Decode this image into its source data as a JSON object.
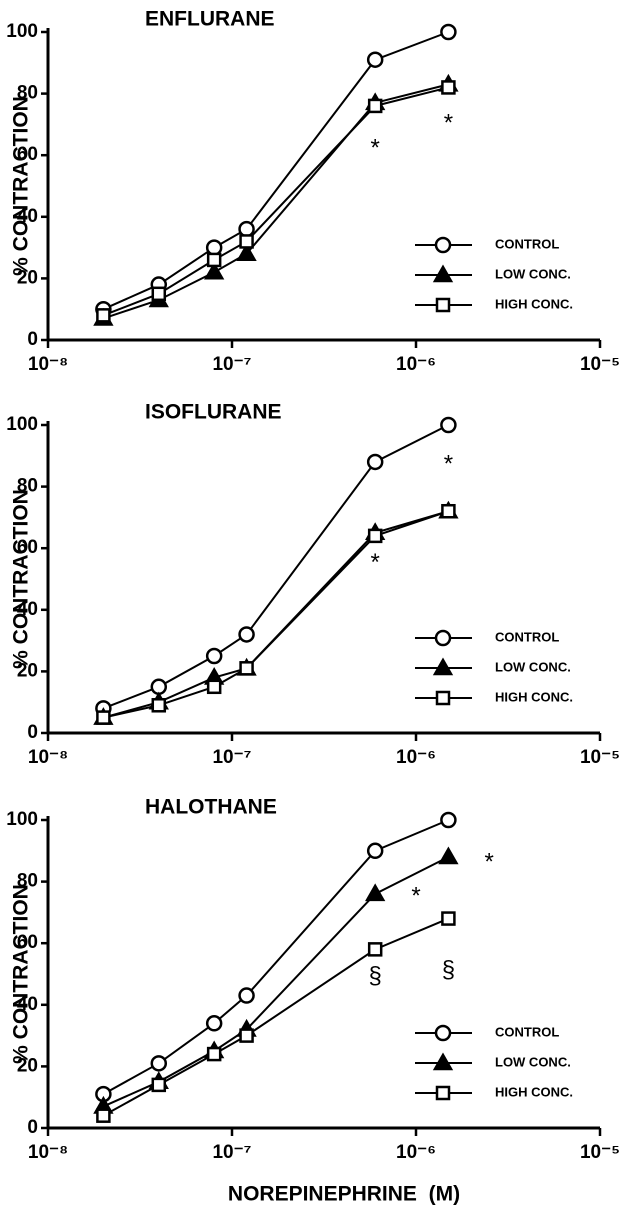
{
  "chart_data": [
    {
      "type": "line",
      "title": "ENFLURANE",
      "y_label": "% CONTRACTION",
      "x": [
        2e-08,
        4e-08,
        8e-08,
        1.2e-07,
        6e-07,
        1.5e-06
      ],
      "xlog": true,
      "xlim": [
        1e-08,
        1e-05
      ],
      "xticks": [
        {
          "value": 1e-08,
          "label": "10⁻⁸"
        },
        {
          "value": 1e-07,
          "label": "10⁻⁷"
        },
        {
          "value": 1e-06,
          "label": "10⁻⁶"
        },
        {
          "value": 1e-05,
          "label": "10⁻⁵"
        }
      ],
      "ylim": [
        0,
        100
      ],
      "yticks": [
        0,
        20,
        40,
        60,
        80,
        100
      ],
      "legend": "lower right",
      "series": [
        {
          "name": "CONTROL",
          "color": "#000000",
          "marker": "circle",
          "values": [
            10,
            18,
            30,
            36,
            91,
            100
          ]
        },
        {
          "name": "LOW CONC.",
          "color": "#000000",
          "marker": "triangle",
          "values": [
            7,
            13,
            22,
            28,
            77,
            83
          ]
        },
        {
          "name": "HIGH CONC.",
          "color": "#000000",
          "marker": "square",
          "values": [
            8,
            15,
            26,
            32,
            76,
            82
          ]
        }
      ],
      "annotations": [
        {
          "text": "*",
          "x": 6e-07,
          "y": 62
        },
        {
          "text": "*",
          "x": 1.5e-06,
          "y": 70
        }
      ]
    },
    {
      "type": "line",
      "title": "ISOFLURANE",
      "y_label": "% CONTRACTION",
      "x": [
        2e-08,
        4e-08,
        8e-08,
        1.2e-07,
        6e-07,
        1.5e-06
      ],
      "xlog": true,
      "xlim": [
        1e-08,
        1e-05
      ],
      "xticks": [
        {
          "value": 1e-08,
          "label": "10⁻⁸"
        },
        {
          "value": 1e-07,
          "label": "10⁻⁷"
        },
        {
          "value": 1e-06,
          "label": "10⁻⁶"
        },
        {
          "value": 1e-05,
          "label": "10⁻⁵"
        }
      ],
      "ylim": [
        0,
        100
      ],
      "yticks": [
        0,
        20,
        40,
        60,
        80,
        100
      ],
      "legend": "lower right",
      "series": [
        {
          "name": "CONTROL",
          "color": "#000000",
          "marker": "circle",
          "values": [
            8,
            15,
            25,
            32,
            88,
            100
          ]
        },
        {
          "name": "LOW CONC.",
          "color": "#000000",
          "marker": "triangle",
          "values": [
            5,
            10,
            18,
            21,
            65,
            72
          ]
        },
        {
          "name": "HIGH CONC.",
          "color": "#000000",
          "marker": "square",
          "values": [
            5,
            9,
            15,
            21,
            64,
            72
          ]
        }
      ],
      "annotations": [
        {
          "text": "*",
          "x": 1.5e-06,
          "y": 87
        },
        {
          "text": "*",
          "x": 6e-07,
          "y": 55
        }
      ]
    },
    {
      "type": "line",
      "title": "HALOTHANE",
      "y_label": "% CONTRACTION",
      "x_label": "NOREPINEPHRINE  (M)",
      "x": [
        2e-08,
        4e-08,
        8e-08,
        1.2e-07,
        6e-07,
        1.5e-06
      ],
      "xlog": true,
      "xlim": [
        1e-08,
        1e-05
      ],
      "xticks": [
        {
          "value": 1e-08,
          "label": "10⁻⁸"
        },
        {
          "value": 1e-07,
          "label": "10⁻⁷"
        },
        {
          "value": 1e-06,
          "label": "10⁻⁶"
        },
        {
          "value": 1e-05,
          "label": "10⁻⁵"
        }
      ],
      "ylim": [
        0,
        100
      ],
      "yticks": [
        0,
        20,
        40,
        60,
        80,
        100
      ],
      "legend": "lower right",
      "series": [
        {
          "name": "CONTROL",
          "color": "#000000",
          "marker": "circle",
          "values": [
            11,
            21,
            34,
            43,
            90,
            100
          ]
        },
        {
          "name": "LOW CONC.",
          "color": "#000000",
          "marker": "triangle",
          "values": [
            7,
            15,
            25,
            32,
            76,
            88
          ]
        },
        {
          "name": "HIGH CONC.",
          "color": "#000000",
          "marker": "square",
          "values": [
            4,
            14,
            24,
            30,
            58,
            68
          ]
        }
      ],
      "annotations": [
        {
          "text": "*",
          "x": 2.5e-06,
          "y": 86
        },
        {
          "text": "*",
          "x": 1e-06,
          "y": 75
        },
        {
          "text": "§",
          "x": 6e-07,
          "y": 49
        },
        {
          "text": "§",
          "x": 1.5e-06,
          "y": 51
        }
      ]
    }
  ]
}
